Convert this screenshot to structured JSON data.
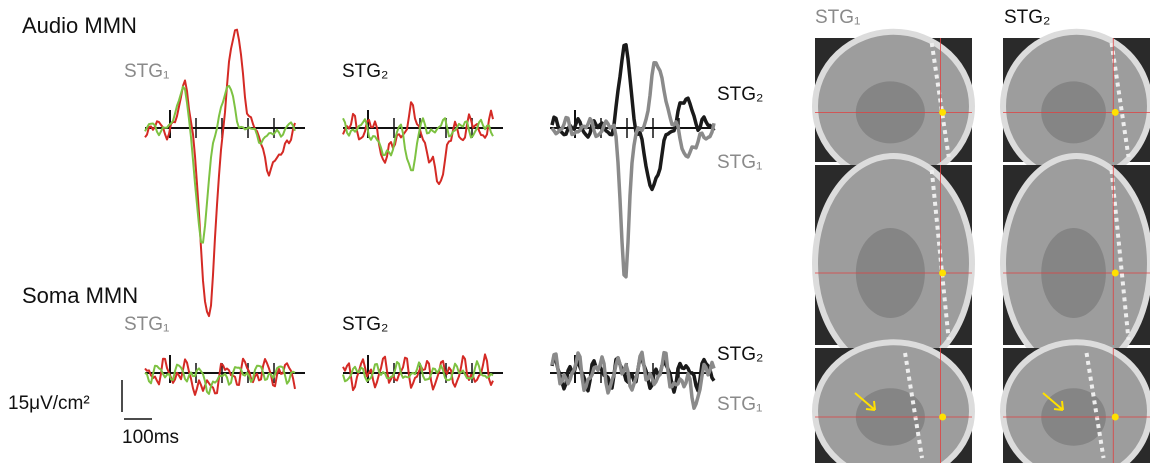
{
  "figure": {
    "rows": [
      {
        "title": "Audio MMN",
        "panels": [
          {
            "label": "STG₁"
          },
          {
            "label": "STG₂"
          },
          {
            "labels": [
              "STG₂",
              "STG₁"
            ]
          }
        ]
      },
      {
        "title": "Soma MMN",
        "panels": [
          {
            "label": "STG₁"
          },
          {
            "label": "STG₂"
          },
          {
            "labels": [
              "STG₂",
              "STG₁"
            ]
          }
        ]
      }
    ],
    "scale": {
      "amplitude": "15μV/cm²",
      "time": "100ms"
    },
    "images": {
      "columns": [
        "STG₁",
        "STG₂"
      ]
    }
  }
}
